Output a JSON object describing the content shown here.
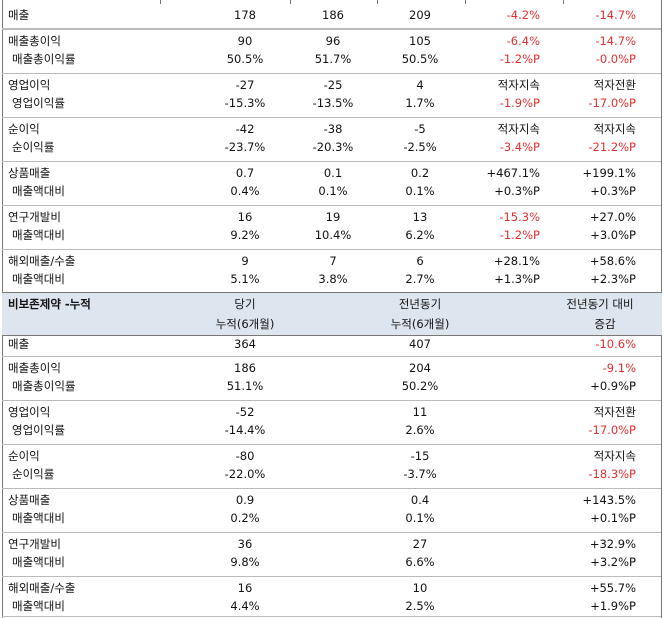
{
  "negative_color": "#e03030",
  "top_table": {
    "groups": [
      [
        [
          "매출",
          "178",
          "186",
          "209",
          "-4.2%",
          "-14.7%"
        ]
      ],
      [
        [
          "매출총이익",
          "90",
          "96",
          "105",
          "-6.4%",
          "-14.7%"
        ],
        [
          "매출총이익률",
          "50.5%",
          "51.7%",
          "50.5%",
          "-1.2%P",
          "-0.0%P"
        ]
      ],
      [
        [
          "영업이익",
          "-27",
          "-25",
          "4",
          "적자지속",
          "적자전환"
        ],
        [
          "영업이익률",
          "-15.3%",
          "-13.5%",
          "1.7%",
          "-1.9%P",
          "-17.0%P"
        ]
      ],
      [
        [
          "순이익",
          "-42",
          "-38",
          "-5",
          "적자지속",
          "적자지속"
        ],
        [
          "순이익률",
          "-23.7%",
          "-20.3%",
          "-2.5%",
          "-3.4%P",
          "-21.2%P"
        ]
      ],
      [
        [
          "상품매출",
          "0.7",
          "0.1",
          "0.2",
          "+467.1%",
          "+199.1%"
        ],
        [
          "매출액대비",
          "0.4%",
          "0.1%",
          "0.1%",
          "+0.3%P",
          "+0.3%P"
        ]
      ],
      [
        [
          "연구개발비",
          "16",
          "19",
          "13",
          "-15.3%",
          "+27.0%"
        ],
        [
          "매출액대비",
          "9.2%",
          "10.4%",
          "6.2%",
          "-1.2%P",
          "+3.0%P"
        ]
      ],
      [
        [
          "해외매출/수출",
          "9",
          "7",
          "6",
          "+28.1%",
          "+58.6%"
        ],
        [
          "매출액대비",
          "5.1%",
          "3.8%",
          "2.7%",
          "+1.3%P",
          "+2.3%P"
        ]
      ]
    ]
  },
  "bottom_table": {
    "title": "비보존제약 -누적",
    "headers": [
      [
        "당기",
        "누적(6개월)"
      ],
      [
        "전년동기",
        "누적(6개월)"
      ],
      [
        "전년동기 대비",
        "증감"
      ]
    ],
    "groups": [
      [
        [
          "매출",
          "364",
          "407",
          "-10.6%"
        ]
      ],
      [
        [
          "매출총이익",
          "186",
          "204",
          "-9.1%"
        ],
        [
          "매출총이익률",
          "51.1%",
          "50.2%",
          "+0.9%P"
        ]
      ],
      [
        [
          "영업이익",
          "-52",
          "11",
          "적자전환"
        ],
        [
          "영업이익률",
          "-14.4%",
          "2.6%",
          "-17.0%P"
        ]
      ],
      [
        [
          "순이익",
          "-80",
          "-15",
          "적자지속"
        ],
        [
          "순이익률",
          "-22.0%",
          "-3.7%",
          "-18.3%P"
        ]
      ],
      [
        [
          "상품매출",
          "0.9",
          "0.4",
          "+143.5%"
        ],
        [
          "매출액대비",
          "0.2%",
          "0.1%",
          "+0.1%P"
        ]
      ],
      [
        [
          "연구개발비",
          "36",
          "27",
          "+32.9%"
        ],
        [
          "매출액대비",
          "9.8%",
          "6.6%",
          "+3.2%P"
        ]
      ],
      [
        [
          "해외매출/수출",
          "16",
          "10",
          "+55.7%"
        ],
        [
          "매출액대비",
          "4.4%",
          "2.5%",
          "+1.9%P"
        ]
      ]
    ]
  }
}
